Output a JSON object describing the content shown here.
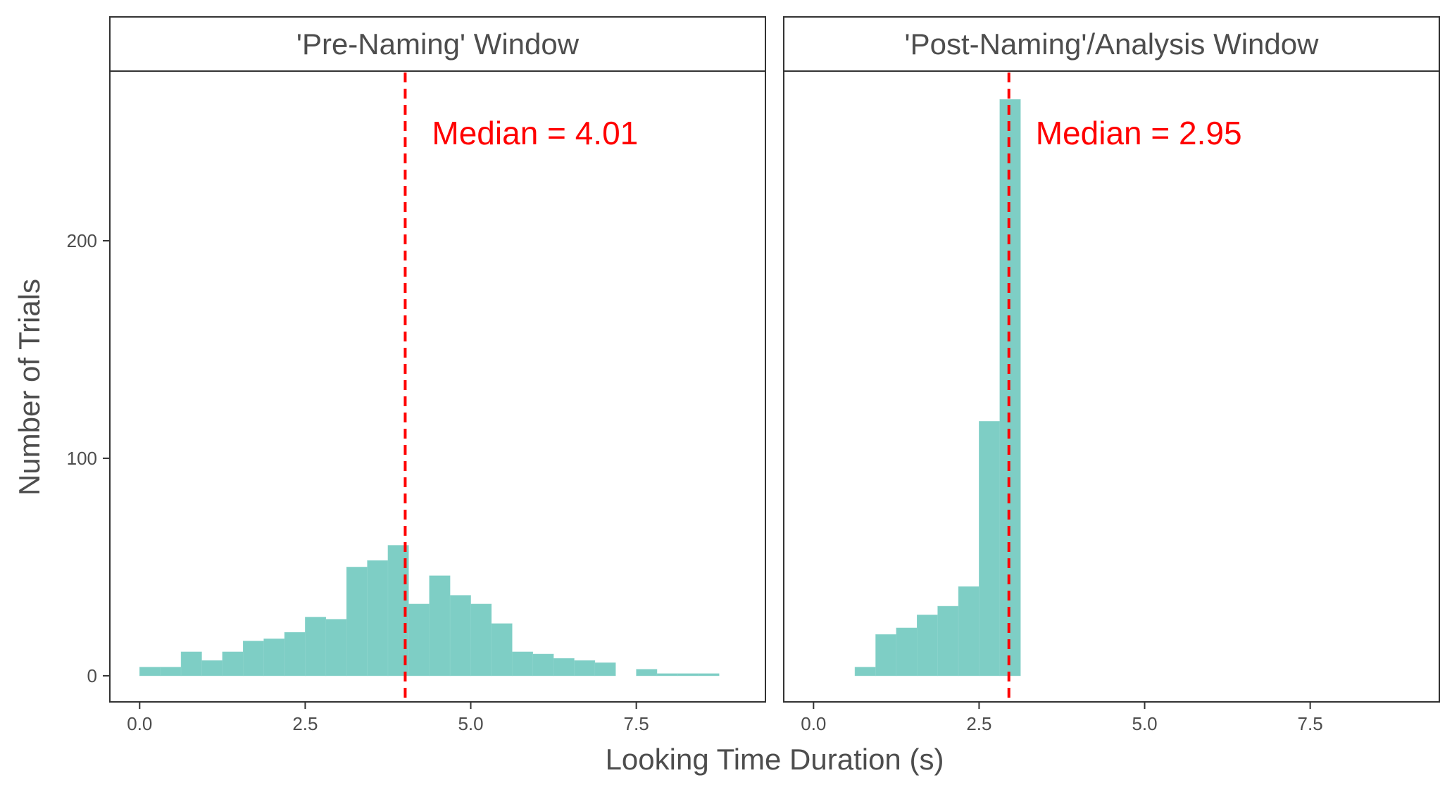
{
  "chart_data": {
    "type": "bar",
    "xlabel": "Looking Time Duration (s)",
    "ylabel": "Number of Trials",
    "xlim": [
      -0.45,
      9.45
    ],
    "ylim": [
      -12,
      278
    ],
    "x_ticks": [
      0,
      2.5,
      5,
      7.5
    ],
    "x_tick_labels": [
      "0.0",
      "2.5",
      "5.0",
      "7.5"
    ],
    "y_ticks": [
      0,
      100,
      200
    ],
    "y_tick_labels": [
      "0",
      "100",
      "200"
    ],
    "bin_width": 0.3125,
    "bar_color": "#7ECEC5",
    "median_line_color": "#FF0000",
    "panels": [
      {
        "strip_label": "'Pre-Naming' Window",
        "median": 4.01,
        "median_label": "Median = 4.01",
        "bins": [
          {
            "x": 0.156,
            "count": 4
          },
          {
            "x": 0.469,
            "count": 4
          },
          {
            "x": 0.781,
            "count": 11
          },
          {
            "x": 1.094,
            "count": 7
          },
          {
            "x": 1.406,
            "count": 11
          },
          {
            "x": 1.719,
            "count": 16
          },
          {
            "x": 2.031,
            "count": 17
          },
          {
            "x": 2.344,
            "count": 20
          },
          {
            "x": 2.656,
            "count": 27
          },
          {
            "x": 2.969,
            "count": 26
          },
          {
            "x": 3.281,
            "count": 50
          },
          {
            "x": 3.594,
            "count": 53
          },
          {
            "x": 3.906,
            "count": 60
          },
          {
            "x": 4.219,
            "count": 33
          },
          {
            "x": 4.531,
            "count": 46
          },
          {
            "x": 4.844,
            "count": 37
          },
          {
            "x": 5.156,
            "count": 33
          },
          {
            "x": 5.469,
            "count": 24
          },
          {
            "x": 5.781,
            "count": 11
          },
          {
            "x": 6.094,
            "count": 10
          },
          {
            "x": 6.406,
            "count": 8
          },
          {
            "x": 6.719,
            "count": 7
          },
          {
            "x": 7.031,
            "count": 6
          },
          {
            "x": 7.656,
            "count": 3
          },
          {
            "x": 7.969,
            "count": 1
          },
          {
            "x": 8.281,
            "count": 1
          },
          {
            "x": 8.594,
            "count": 1
          }
        ]
      },
      {
        "strip_label": "'Post-Naming'/Analysis Window",
        "median": 2.95,
        "median_label": "Median = 2.95",
        "bins": [
          {
            "x": 0.781,
            "count": 4
          },
          {
            "x": 1.094,
            "count": 19
          },
          {
            "x": 1.406,
            "count": 22
          },
          {
            "x": 1.719,
            "count": 28
          },
          {
            "x": 2.031,
            "count": 32
          },
          {
            "x": 2.344,
            "count": 41
          },
          {
            "x": 2.656,
            "count": 117
          },
          {
            "x": 2.969,
            "count": 265
          }
        ]
      }
    ]
  }
}
